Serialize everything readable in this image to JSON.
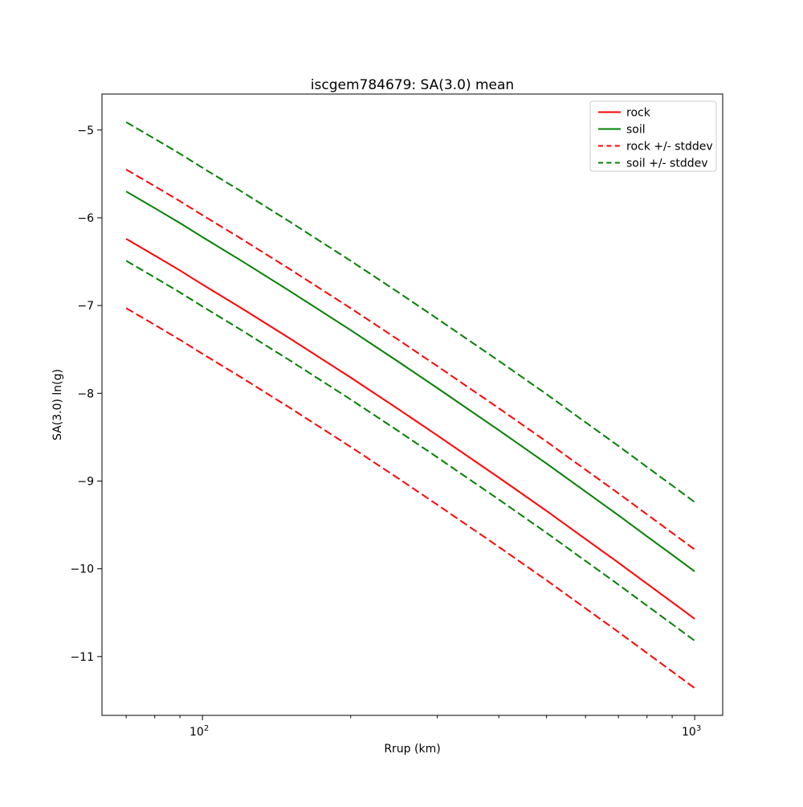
{
  "figure": {
    "title": "iscgem784679: SA(3.0) mean"
  },
  "chart_data": {
    "type": "line",
    "title": "iscgem784679: SA(3.0) mean",
    "xlabel": "Rrup (km)",
    "ylabel": "SA(3.0) ln(g)",
    "x_scale": "log",
    "y_scale": "linear",
    "xlim": [
      62.5,
      1140
    ],
    "ylim": [
      -11.67,
      -4.59
    ],
    "grid": false,
    "x": [
      70,
      80,
      90,
      100,
      120,
      150,
      200,
      250,
      300,
      400,
      500,
      600,
      700,
      800,
      900,
      1000
    ],
    "series": [
      {
        "name": "rock",
        "color": "#ff0000",
        "dash": false,
        "values": [
          -6.24,
          -6.43,
          -6.6,
          -6.76,
          -7.03,
          -7.37,
          -7.82,
          -8.18,
          -8.48,
          -8.96,
          -9.34,
          -9.66,
          -9.93,
          -10.17,
          -10.38,
          -10.57
        ]
      },
      {
        "name": "soil",
        "color": "#008000",
        "dash": false,
        "values": [
          -5.7,
          -5.89,
          -6.06,
          -6.22,
          -6.49,
          -6.83,
          -7.28,
          -7.64,
          -7.94,
          -8.42,
          -8.8,
          -9.12,
          -9.39,
          -9.63,
          -9.84,
          -10.03
        ]
      },
      {
        "name": "rock + stddev",
        "color": "#ff0000",
        "dash": true,
        "values": [
          -5.45,
          -5.64,
          -5.81,
          -5.97,
          -6.24,
          -6.58,
          -7.03,
          -7.39,
          -7.69,
          -8.17,
          -8.55,
          -8.87,
          -9.14,
          -9.38,
          -9.59,
          -9.78
        ]
      },
      {
        "name": "rock - stddev",
        "color": "#ff0000",
        "dash": true,
        "values": [
          -7.03,
          -7.22,
          -7.39,
          -7.55,
          -7.82,
          -8.16,
          -8.61,
          -8.97,
          -9.27,
          -9.75,
          -10.13,
          -10.45,
          -10.72,
          -10.96,
          -11.17,
          -11.36
        ]
      },
      {
        "name": "soil + stddev",
        "color": "#008000",
        "dash": true,
        "values": [
          -4.91,
          -5.1,
          -5.27,
          -5.43,
          -5.7,
          -6.04,
          -6.49,
          -6.85,
          -7.15,
          -7.63,
          -8.01,
          -8.33,
          -8.6,
          -8.84,
          -9.05,
          -9.24
        ]
      },
      {
        "name": "soil - stddev",
        "color": "#008000",
        "dash": true,
        "values": [
          -6.49,
          -6.68,
          -6.85,
          -7.01,
          -7.28,
          -7.62,
          -8.07,
          -8.43,
          -8.73,
          -9.21,
          -9.59,
          -9.91,
          -10.18,
          -10.42,
          -10.63,
          -10.82
        ]
      }
    ],
    "legend": {
      "position": "upper right",
      "entries": [
        {
          "label": "rock",
          "color": "#ff0000",
          "dash": false
        },
        {
          "label": "soil",
          "color": "#008000",
          "dash": false
        },
        {
          "label": "rock +/- stddev",
          "color": "#ff0000",
          "dash": true
        },
        {
          "label": "soil +/- stddev",
          "color": "#008000",
          "dash": true
        }
      ]
    },
    "y_ticks": {
      "values": [
        -5,
        -6,
        -7,
        -8,
        -9,
        -10,
        -11
      ],
      "labels": [
        "−5",
        "−6",
        "−7",
        "−8",
        "−9",
        "−10",
        "−11"
      ]
    },
    "x_major_ticks": [
      {
        "value": 100,
        "base": "10",
        "exponent": "2"
      },
      {
        "value": 1000,
        "base": "10",
        "exponent": "3"
      }
    ],
    "x_minor_ticks": [
      70,
      80,
      90,
      200,
      300,
      400,
      500,
      600,
      700,
      800,
      900
    ],
    "colors": {
      "rock": "#ff0000",
      "soil": "#008000",
      "axis": "#000000",
      "legend_border": "#cccccc",
      "background": "#ffffff"
    }
  }
}
